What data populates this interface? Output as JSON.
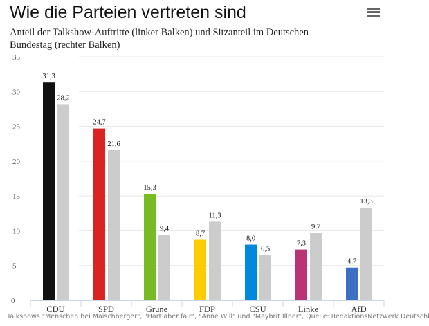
{
  "header": {
    "title": "Wie die Parteien vertreten sind",
    "subtitle": "Anteil der Talkshow-Auftritte (linker Balken) und Sitzanteil im Deutschen Bundestag (rechter Balken)",
    "menu_icon": "hamburger-menu-icon"
  },
  "chart_data": {
    "type": "bar",
    "categories": [
      "CDU",
      "SPD",
      "Grüne",
      "FDP",
      "CSU",
      "Linke",
      "AfD"
    ],
    "series": [
      {
        "values": [
          31.3,
          24.7,
          15.3,
          8.7,
          8.0,
          7.3,
          4.7
        ],
        "labels": [
          "31,3",
          "24,7",
          "15,3",
          "8,7",
          "8,0",
          "7,3",
          "4,7"
        ],
        "colors": [
          "#111111",
          "#dd2222",
          "#77bb22",
          "#ffcc00",
          "#0088dd",
          "#bb3377",
          "#3a6fc4"
        ]
      },
      {
        "values": [
          28.2,
          21.6,
          9.4,
          11.3,
          6.5,
          9.7,
          13.3
        ],
        "labels": [
          "28,2",
          "21,6",
          "9,4",
          "11,3",
          "6,5",
          "9,7",
          "13,3"
        ],
        "color": "#cccccc"
      }
    ],
    "yticks": [
      "0",
      "5",
      "10",
      "15",
      "20",
      "25",
      "30",
      "35"
    ],
    "ylim": [
      0,
      35
    ],
    "grid": true
  },
  "credits": "Talkshows \"Menschen bei Maischberger\", \"Hart aber fair\", \"Anne Will\" und \"Maybrit Illner\", Quelle: RedaktionsNetzwerk Deutschland"
}
